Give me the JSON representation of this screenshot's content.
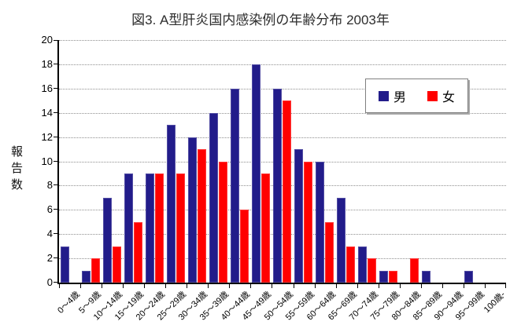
{
  "chart_data": {
    "type": "bar",
    "title": "図3. A型肝炎国内感染例の年齢分布 2003年",
    "ylabel": "報告数",
    "xlabel": "",
    "ylim": [
      0,
      20
    ],
    "y_ticks": [
      0,
      2,
      4,
      6,
      8,
      10,
      12,
      14,
      16,
      18,
      20
    ],
    "grid": "horizontal-dotted",
    "legend_position": "upper-right-inside",
    "categories": [
      "0〜4歳",
      "5〜9歳",
      "10〜14歳",
      "15〜19歳",
      "20〜24歳",
      "25〜29歳",
      "30〜34歳",
      "35〜39歳",
      "40〜44歳",
      "45〜49歳",
      "50〜54歳",
      "55〜59歳",
      "60〜64歳",
      "65〜69歳",
      "70〜74歳",
      "75〜79歳",
      "80〜84歳",
      "85〜89歳",
      "90〜94歳",
      "95〜99歳",
      "100歳-"
    ],
    "series": [
      {
        "name": "男",
        "color": "#221C8A",
        "values": [
          3,
          1,
          7,
          9,
          9,
          13,
          12,
          14,
          16,
          18,
          16,
          11,
          10,
          7,
          3,
          1,
          0,
          1,
          0,
          1,
          0
        ]
      },
      {
        "name": "女",
        "color": "#FF0000",
        "values": [
          0,
          2,
          3,
          5,
          9,
          9,
          11,
          10,
          6,
          9,
          15,
          10,
          5,
          3,
          2,
          1,
          2,
          0,
          0,
          0,
          0
        ]
      }
    ],
    "axis_color": "#000000",
    "gridline_color": "#8f8f8f",
    "background_color": "#ffffff"
  }
}
